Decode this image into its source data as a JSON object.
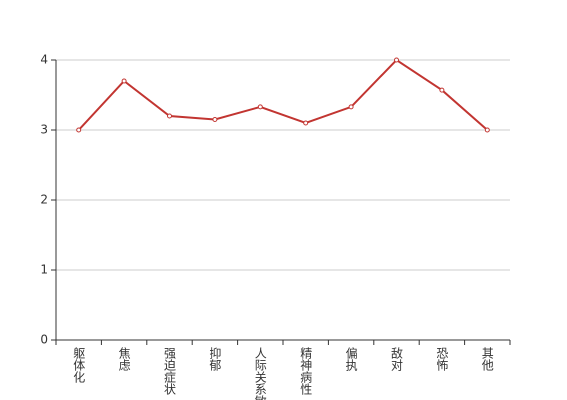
{
  "chart_data": {
    "type": "line",
    "categories": [
      "躯体化",
      "焦虑",
      "强迫症状",
      "抑郁",
      "人际关系敏感",
      "精神病性",
      "偏执",
      "敌对",
      "恐怖",
      "其他"
    ],
    "values": [
      3,
      3.7,
      3.2,
      3.15,
      3.33,
      3.1,
      3.33,
      4,
      3.57,
      3
    ],
    "color": "#c23531",
    "ylim": [
      0,
      4
    ],
    "yticks": [
      0,
      1,
      2,
      3,
      4
    ],
    "grid": true
  }
}
